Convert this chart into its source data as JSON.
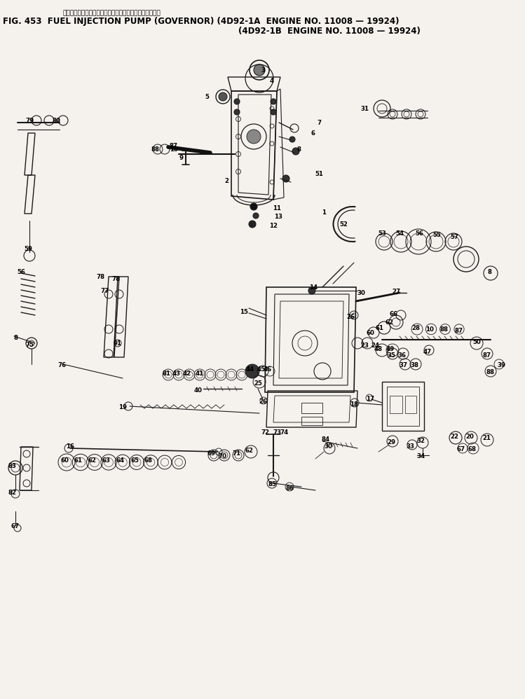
{
  "title_line1_jp": "フェルインジェクションポンプ　ガバナ　　　　適用号機",
  "title_line2": "FIG. 453  FUEL INJECTION PUMP (GOVERNOR) (4D92-1A  ENGINE NO. 11008 — 19924)",
  "title_line3": "(4D92-1B  ENGINE NO. 11008 — 19924)",
  "bg_color": "#f0ede8",
  "line_color": "#1a1a1a",
  "text_color": "#000000",
  "fig_width": 7.49,
  "fig_height": 9.98,
  "dpi": 100
}
